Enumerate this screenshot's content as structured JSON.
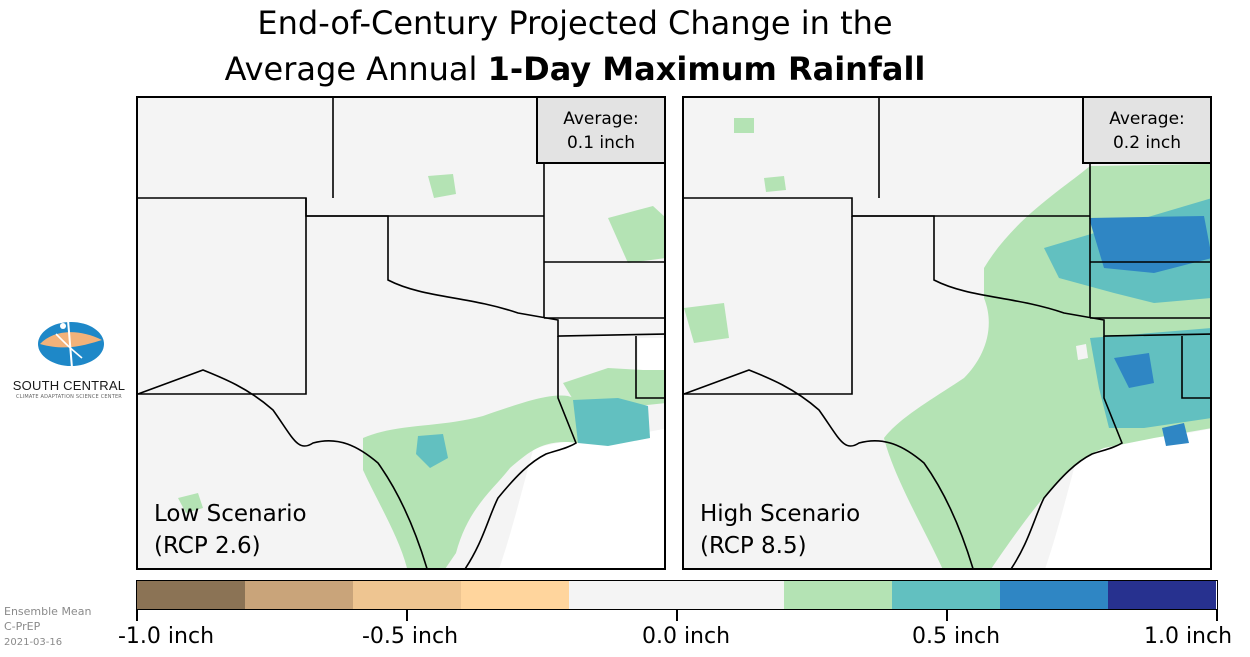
{
  "title": {
    "line1": "End-of-Century Projected Change in the",
    "line2_normal": "Average Annual ",
    "line2_bold": "1-Day Maximum Rainfall"
  },
  "logo": {
    "name": "SOUTH CENTRAL",
    "subtitle": "CLIMATE ADAPTATION SCIENCE CENTER"
  },
  "panels": [
    {
      "scenario_line1": "Low Scenario",
      "scenario_line2": "(RCP 2.6)",
      "avg_label": "Average:",
      "avg_value": "0.1 inch"
    },
    {
      "scenario_line1": "High Scenario",
      "scenario_line2": "(RCP 8.5)",
      "avg_label": "Average:",
      "avg_value": "0.2 inch"
    }
  ],
  "colorbar": {
    "colors": [
      "#8b7355",
      "#c9a47a",
      "#eec591",
      "#ffd59d",
      "#f4f4f4",
      "#f4f4f4",
      "#b4e3b4",
      "#62c0c0",
      "#2f86c4",
      "#27318f"
    ],
    "tick_labels": [
      "-1.0 inch",
      "-0.5 inch",
      "0.0 inch",
      "0.5 inch",
      "1.0 inch"
    ]
  },
  "footer": {
    "line1": "Ensemble Mean",
    "line2": "C-PrEP",
    "line3": "2021-03-16"
  }
}
